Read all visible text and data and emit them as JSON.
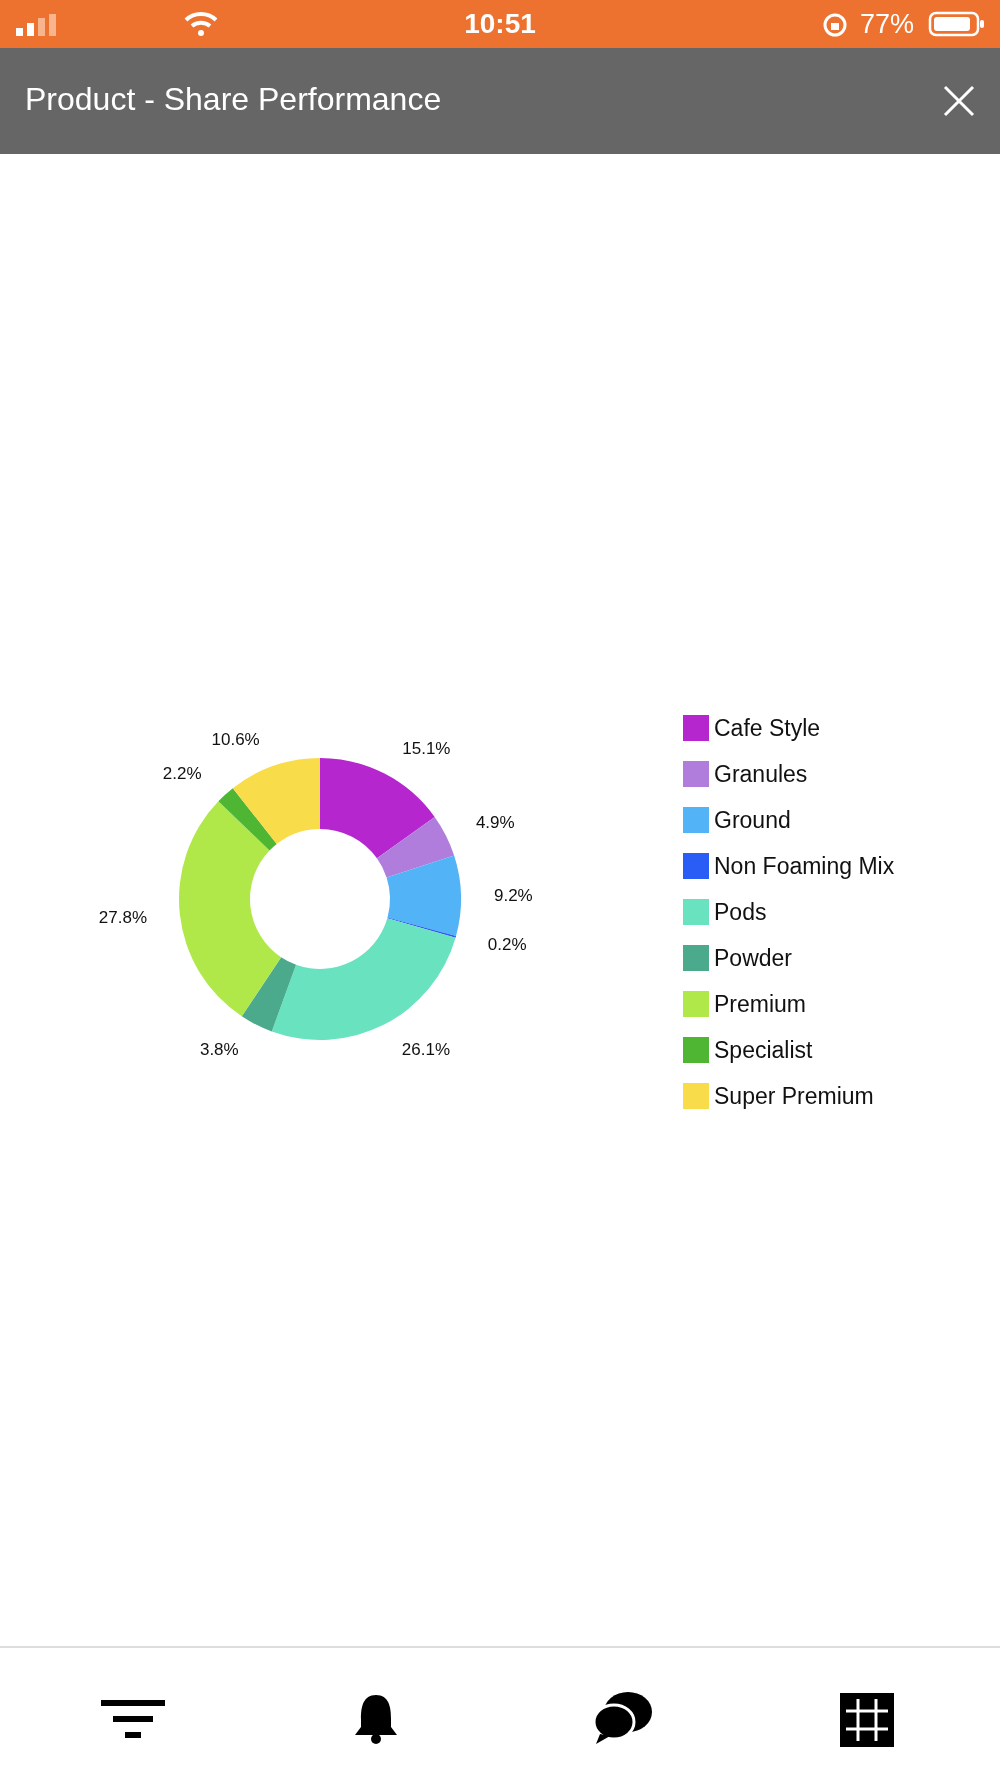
{
  "chart_data": {
    "type": "donut",
    "title": "Product - Share Performance",
    "categories": [
      "Cafe Style",
      "Granules",
      "Ground",
      "Non Foaming Mix",
      "Pods",
      "Powder",
      "Premium",
      "Specialist",
      "Super Premium"
    ],
    "values": [
      15.1,
      4.9,
      9.2,
      0.2,
      26.1,
      3.8,
      27.8,
      2.2,
      10.6
    ],
    "value_labels": [
      "15.1%",
      "4.9%",
      "9.2%",
      "0.2%",
      "26.1%",
      "3.8%",
      "27.8%",
      "2.2%",
      "10.6%"
    ],
    "colors": [
      "#b526cf",
      "#b07ddd",
      "#52b3f7",
      "#2a5df5",
      "#68e2bf",
      "#4caa8c",
      "#b0e84a",
      "#4fb634",
      "#f8dc4a"
    ],
    "legend": "right",
    "annotations": [
      "10:51",
      "77%"
    ]
  }
}
